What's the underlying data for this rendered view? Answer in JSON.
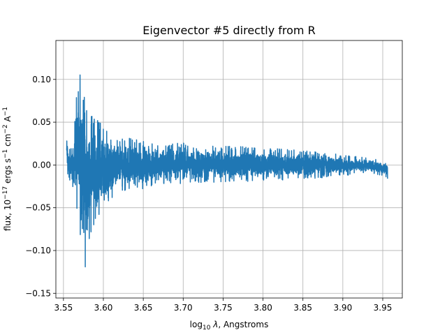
{
  "chart_data": {
    "type": "line",
    "title": "Eigenvector #5 directly from R",
    "xlabel": {
      "prefix": "log",
      "sub": "10",
      "sym": "λ",
      "rest": ", Angstroms"
    },
    "ylabel": {
      "parts": [
        {
          "t": "flux, 10",
          "s": "n"
        },
        {
          "t": "−17",
          "s": "sup"
        },
        {
          "t": " ergs s",
          "s": "n"
        },
        {
          "t": "−1",
          "s": "sup"
        },
        {
          "t": " cm",
          "s": "n"
        },
        {
          "t": "−2",
          "s": "sup"
        },
        {
          "t": " A",
          "s": "n"
        },
        {
          "t": "−1",
          "s": "sup"
        }
      ]
    },
    "xlim": [
      3.5405,
      3.9745
    ],
    "ylim": [
      -0.1555,
      0.1455
    ],
    "grid": true,
    "x_ticks": [
      3.55,
      3.6,
      3.65,
      3.7,
      3.75,
      3.8,
      3.85,
      3.9,
      3.95
    ],
    "x_tick_labels": [
      "3.55",
      "3.60",
      "3.65",
      "3.70",
      "3.75",
      "3.80",
      "3.85",
      "3.90",
      "3.95"
    ],
    "y_ticks": [
      -0.15,
      -0.1,
      -0.05,
      0.0,
      0.05,
      0.1
    ],
    "y_tick_labels": [
      "−0.15",
      "−0.10",
      "−0.05",
      "0.00",
      "0.05",
      "0.10"
    ],
    "series": [
      {
        "color": "#1f77b4",
        "x_start": 3.554,
        "x_end": 3.956,
        "n_points": 4000,
        "envelope": {
          "x": [
            3.554,
            3.557,
            3.56,
            3.563,
            3.566,
            3.569,
            3.572,
            3.575,
            3.578,
            3.581,
            3.585,
            3.59,
            3.595,
            3.6,
            3.61,
            3.62,
            3.64,
            3.66,
            3.68,
            3.7,
            3.75,
            3.8,
            3.85,
            3.9,
            3.93,
            3.956
          ],
          "max": [
            0.045,
            0.02,
            0.035,
            0.03,
            0.1,
            0.115,
            0.135,
            0.125,
            0.1,
            0.07,
            0.07,
            0.065,
            0.06,
            0.055,
            0.04,
            0.04,
            0.035,
            0.03,
            0.03,
            0.03,
            0.026,
            0.024,
            0.02,
            0.014,
            0.01,
            0.006
          ],
          "min": [
            -0.01,
            -0.025,
            -0.03,
            -0.03,
            -0.06,
            -0.1,
            -0.11,
            -0.13,
            -0.14,
            -0.12,
            -0.09,
            -0.08,
            -0.07,
            -0.06,
            -0.05,
            -0.04,
            -0.035,
            -0.03,
            -0.028,
            -0.026,
            -0.024,
            -0.022,
            -0.02,
            -0.015,
            -0.01,
            -0.016
          ]
        },
        "final_value": -0.016
      }
    ]
  }
}
